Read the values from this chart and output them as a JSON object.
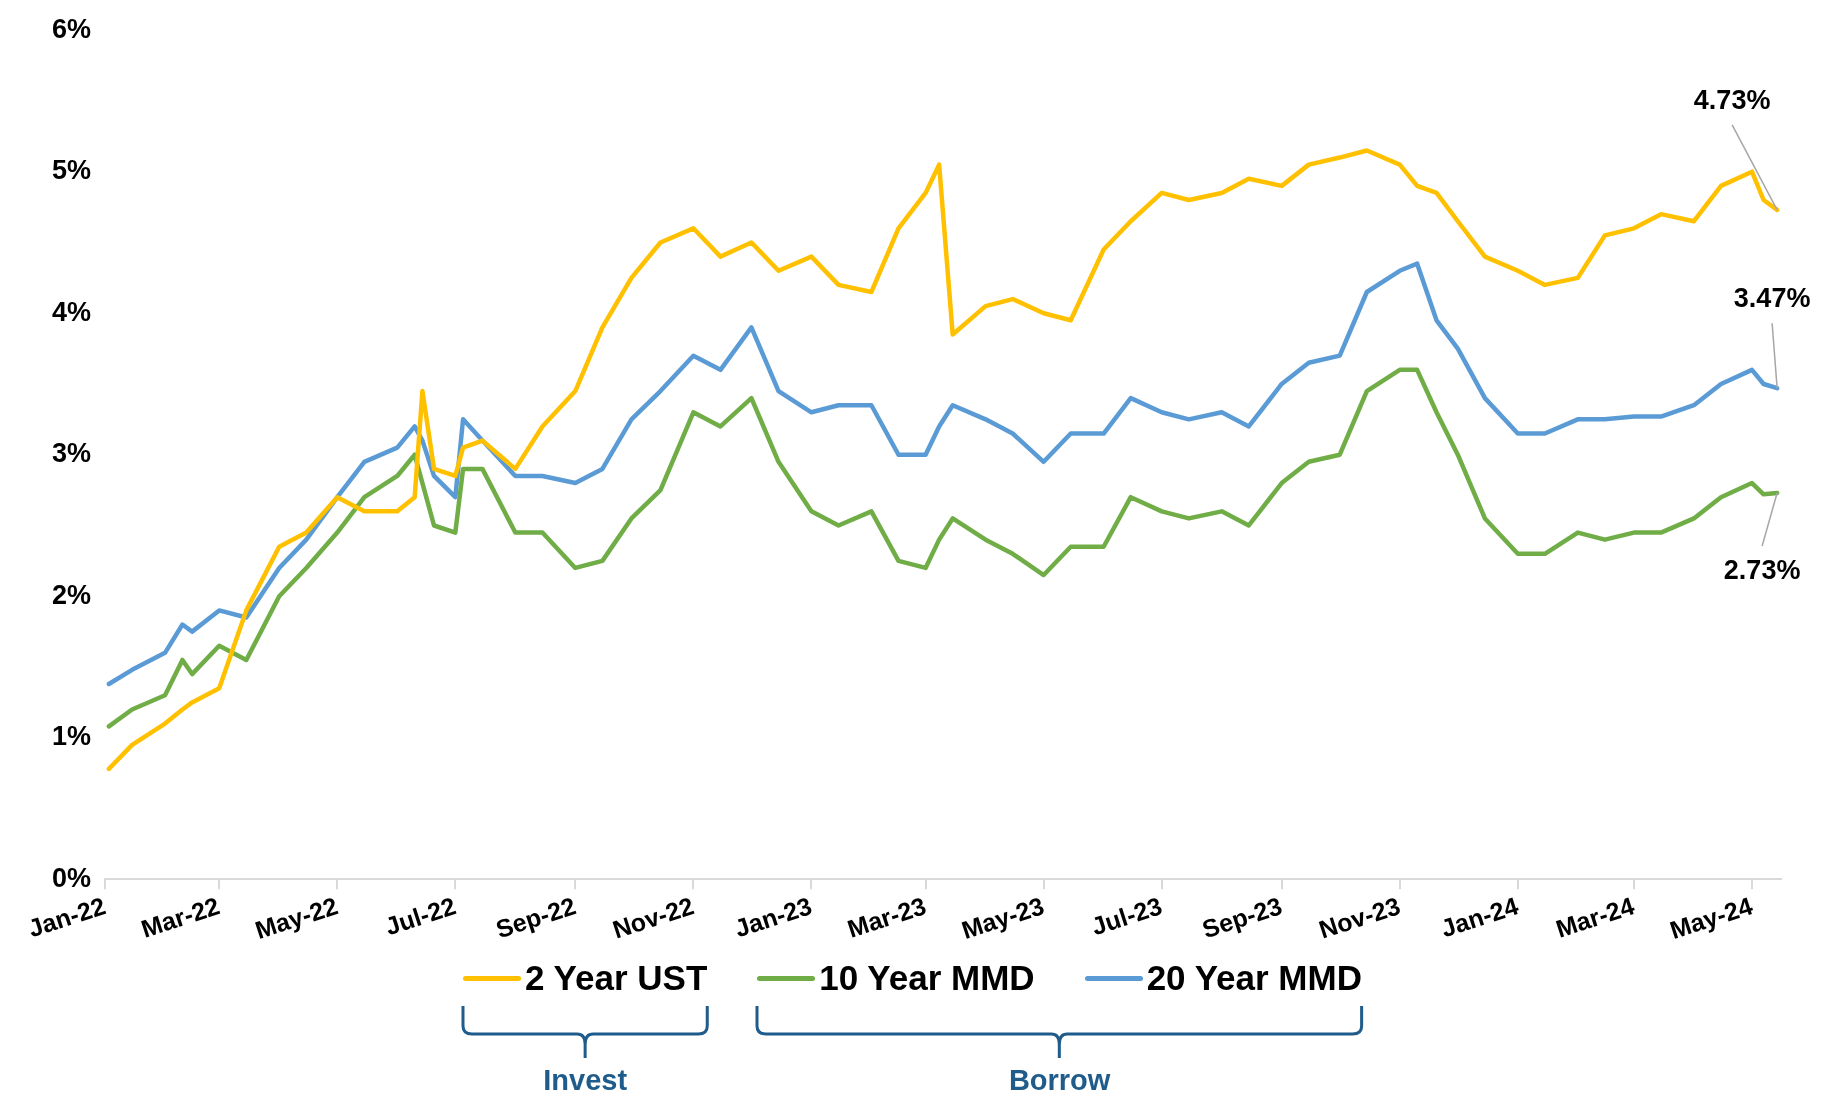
{
  "chart_data": {
    "type": "line",
    "x": [
      "2022-01-03",
      "2022-01-15",
      "2022-02-01",
      "2022-02-10",
      "2022-02-15",
      "2022-03-01",
      "2022-03-15",
      "2022-04-01",
      "2022-04-15",
      "2022-05-01",
      "2022-05-15",
      "2022-06-01",
      "2022-06-10",
      "2022-06-14",
      "2022-06-20",
      "2022-07-01",
      "2022-07-05",
      "2022-07-15",
      "2022-08-01",
      "2022-08-15",
      "2022-09-01",
      "2022-09-15",
      "2022-09-30",
      "2022-10-15",
      "2022-11-01",
      "2022-11-15",
      "2022-12-01",
      "2022-12-15",
      "2023-01-01",
      "2023-01-15",
      "2023-02-01",
      "2023-02-15",
      "2023-03-01",
      "2023-03-08",
      "2023-03-15",
      "2023-04-01",
      "2023-04-15",
      "2023-05-01",
      "2023-05-15",
      "2023-06-01",
      "2023-06-15",
      "2023-07-01",
      "2023-07-15",
      "2023-08-01",
      "2023-08-15",
      "2023-09-01",
      "2023-09-15",
      "2023-10-01",
      "2023-10-15",
      "2023-11-01",
      "2023-11-10",
      "2023-11-20",
      "2023-12-01",
      "2023-12-15",
      "2024-01-01",
      "2024-01-15",
      "2024-02-01",
      "2024-02-15",
      "2024-03-01",
      "2024-03-15",
      "2024-04-01",
      "2024-04-15",
      "2024-05-01",
      "2024-05-07",
      "2024-05-14"
    ],
    "series": [
      {
        "name": "2 Year UST",
        "color": "#ffc000",
        "values": [
          0.78,
          0.95,
          1.1,
          1.2,
          1.25,
          1.35,
          1.9,
          2.35,
          2.45,
          2.7,
          2.6,
          2.6,
          2.7,
          3.45,
          2.9,
          2.85,
          3.05,
          3.1,
          2.9,
          3.2,
          3.45,
          3.9,
          4.25,
          4.5,
          4.6,
          4.4,
          4.5,
          4.3,
          4.4,
          4.2,
          4.15,
          4.6,
          4.85,
          5.05,
          3.85,
          4.05,
          4.1,
          4.0,
          3.95,
          4.45,
          4.65,
          4.85,
          4.8,
          4.85,
          4.95,
          4.9,
          5.05,
          5.1,
          5.15,
          5.05,
          4.9,
          4.85,
          4.65,
          4.4,
          4.3,
          4.2,
          4.25,
          4.55,
          4.6,
          4.7,
          4.65,
          4.9,
          5.0,
          4.8,
          4.73
        ]
      },
      {
        "name": "10 Year MMD",
        "color": "#70ad47",
        "values": [
          1.08,
          1.2,
          1.3,
          1.55,
          1.45,
          1.65,
          1.55,
          2.0,
          2.2,
          2.45,
          2.7,
          2.85,
          3.0,
          2.8,
          2.5,
          2.45,
          2.9,
          2.9,
          2.45,
          2.45,
          2.2,
          2.25,
          2.55,
          2.75,
          3.3,
          3.2,
          3.4,
          2.95,
          2.6,
          2.5,
          2.6,
          2.25,
          2.2,
          2.4,
          2.55,
          2.4,
          2.3,
          2.15,
          2.35,
          2.35,
          2.7,
          2.6,
          2.55,
          2.6,
          2.5,
          2.8,
          2.95,
          3.0,
          3.45,
          3.6,
          3.6,
          3.3,
          3.0,
          2.55,
          2.3,
          2.3,
          2.45,
          2.4,
          2.45,
          2.45,
          2.55,
          2.7,
          2.8,
          2.72,
          2.73
        ]
      },
      {
        "name": "20 Year MMD",
        "color": "#5b9bd5",
        "values": [
          1.38,
          1.48,
          1.6,
          1.8,
          1.75,
          1.9,
          1.85,
          2.2,
          2.4,
          2.7,
          2.95,
          3.05,
          3.2,
          3.1,
          2.85,
          2.7,
          3.25,
          3.1,
          2.85,
          2.85,
          2.8,
          2.9,
          3.25,
          3.45,
          3.7,
          3.6,
          3.9,
          3.45,
          3.3,
          3.35,
          3.35,
          3.0,
          3.0,
          3.2,
          3.35,
          3.25,
          3.15,
          2.95,
          3.15,
          3.15,
          3.4,
          3.3,
          3.25,
          3.3,
          3.2,
          3.5,
          3.65,
          3.7,
          4.15,
          4.3,
          4.35,
          3.95,
          3.75,
          3.4,
          3.15,
          3.15,
          3.25,
          3.25,
          3.27,
          3.27,
          3.35,
          3.5,
          3.6,
          3.5,
          3.47
        ]
      }
    ],
    "xlim": [
      "2022-01-01",
      "2024-05-16"
    ],
    "xticks": [
      {
        "value": "2022-01-01",
        "label": "Jan-22"
      },
      {
        "value": "2022-03-01",
        "label": "Mar-22"
      },
      {
        "value": "2022-05-01",
        "label": "May-22"
      },
      {
        "value": "2022-07-01",
        "label": "Jul-22"
      },
      {
        "value": "2022-09-01",
        "label": "Sep-22"
      },
      {
        "value": "2022-11-01",
        "label": "Nov-22"
      },
      {
        "value": "2023-01-01",
        "label": "Jan-23"
      },
      {
        "value": "2023-03-01",
        "label": "Mar-23"
      },
      {
        "value": "2023-05-01",
        "label": "May-23"
      },
      {
        "value": "2023-07-01",
        "label": "Jul-23"
      },
      {
        "value": "2023-09-01",
        "label": "Sep-23"
      },
      {
        "value": "2023-11-01",
        "label": "Nov-23"
      },
      {
        "value": "2024-01-01",
        "label": "Jan-24"
      },
      {
        "value": "2024-03-01",
        "label": "Mar-24"
      },
      {
        "value": "2024-05-01",
        "label": "May-24"
      }
    ],
    "ylim": [
      0,
      6
    ],
    "yticks": [
      {
        "value": 0,
        "label": "0%"
      },
      {
        "value": 1,
        "label": "1%"
      },
      {
        "value": 2,
        "label": "2%"
      },
      {
        "value": 3,
        "label": "3%"
      },
      {
        "value": 4,
        "label": "4%"
      },
      {
        "value": 5,
        "label": "5%"
      },
      {
        "value": 6,
        "label": "6%"
      }
    ],
    "grid": false,
    "legend": "bottom",
    "marker": "none",
    "line_style": "solid",
    "annotations": [
      {
        "text": "4.73%",
        "x": "2024-05-14",
        "y": 4.73
      },
      {
        "text": "3.47%",
        "x": "2024-05-14",
        "y": 3.47
      },
      {
        "text": "2.73%",
        "x": "2024-05-14",
        "y": 2.73
      },
      "Invest",
      "Borrow"
    ]
  }
}
